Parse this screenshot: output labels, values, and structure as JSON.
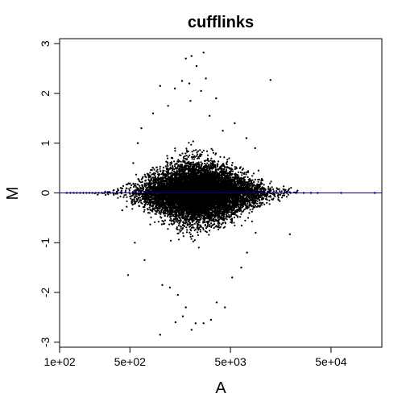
{
  "chart_data": {
    "type": "scatter",
    "title": "cufflinks",
    "xlabel": "A",
    "ylabel": "M",
    "x_scale": "log",
    "xlim": [
      100,
      160000
    ],
    "ylim": [
      -3.1,
      3.1
    ],
    "x_ticks": [
      100,
      500,
      5000,
      50000
    ],
    "x_tick_labels": [
      "1e+02",
      "5e+02",
      "5e+03",
      "5e+04"
    ],
    "y_ticks": [
      -3,
      -2,
      -1,
      0,
      1,
      2,
      3
    ],
    "y_tick_labels": [
      "-3",
      "-2",
      "-1",
      "0",
      "1",
      "2",
      "3"
    ],
    "reference_line": {
      "y": 0,
      "color": "#00008b"
    },
    "grid": false,
    "legend": "none",
    "point_color": "#000000",
    "bulk_cloud": {
      "center_x": 2500,
      "center_y": 0,
      "spread_log10_x": 0.28,
      "spread_y": 0.32,
      "n_points": 9000
    },
    "points": [
      {
        "x": 2700,
        "y": 2.82
      },
      {
        "x": 2050,
        "y": 2.75
      },
      {
        "x": 1800,
        "y": 2.7
      },
      {
        "x": 2300,
        "y": 2.55
      },
      {
        "x": 1650,
        "y": 2.25
      },
      {
        "x": 1950,
        "y": 2.2
      },
      {
        "x": 2850,
        "y": 2.3
      },
      {
        "x": 12500,
        "y": 2.27
      },
      {
        "x": 1000,
        "y": 2.15
      },
      {
        "x": 1400,
        "y": 2.1
      },
      {
        "x": 2550,
        "y": 2.05
      },
      {
        "x": 3600,
        "y": 1.9
      },
      {
        "x": 1200,
        "y": 1.75
      },
      {
        "x": 650,
        "y": 1.3
      },
      {
        "x": 600,
        "y": 1.0
      },
      {
        "x": 5500,
        "y": 1.4
      },
      {
        "x": 7200,
        "y": 1.1
      },
      {
        "x": 850,
        "y": 1.6
      },
      {
        "x": 3100,
        "y": 1.55
      },
      {
        "x": 2000,
        "y": 1.85
      },
      {
        "x": 4200,
        "y": 1.25
      },
      {
        "x": 540,
        "y": 0.6
      },
      {
        "x": 8800,
        "y": 0.9
      },
      {
        "x": 9500,
        "y": 0.45
      },
      {
        "x": 420,
        "y": -0.35
      },
      {
        "x": 19500,
        "y": -0.83
      },
      {
        "x": 560,
        "y": -1.0
      },
      {
        "x": 700,
        "y": -1.35
      },
      {
        "x": 480,
        "y": -1.65
      },
      {
        "x": 1050,
        "y": -1.85
      },
      {
        "x": 1500,
        "y": -2.05
      },
      {
        "x": 1800,
        "y": -2.3
      },
      {
        "x": 1680,
        "y": -2.48
      },
      {
        "x": 2250,
        "y": -2.62
      },
      {
        "x": 3200,
        "y": -2.55
      },
      {
        "x": 2700,
        "y": -2.62
      },
      {
        "x": 4400,
        "y": -2.3
      },
      {
        "x": 1420,
        "y": -2.6
      },
      {
        "x": 1000,
        "y": -2.85
      },
      {
        "x": 3650,
        "y": -2.2
      },
      {
        "x": 2050,
        "y": -2.75
      },
      {
        "x": 5200,
        "y": -1.7
      },
      {
        "x": 7300,
        "y": -1.2
      },
      {
        "x": 6400,
        "y": -1.5
      },
      {
        "x": 1250,
        "y": -1.9
      },
      {
        "x": 8900,
        "y": -0.8
      }
    ],
    "baseline_points": [
      {
        "x": 118,
        "y": 0
      },
      {
        "x": 128,
        "y": 0
      },
      {
        "x": 138,
        "y": 0
      },
      {
        "x": 148,
        "y": 0
      },
      {
        "x": 160,
        "y": 0
      },
      {
        "x": 172,
        "y": 0
      },
      {
        "x": 185,
        "y": 0
      },
      {
        "x": 198,
        "y": 0
      },
      {
        "x": 212,
        "y": 0
      },
      {
        "x": 228,
        "y": 0
      },
      {
        "x": 245,
        "y": 0
      },
      {
        "x": 262,
        "y": 0
      },
      {
        "x": 280,
        "y": 0
      },
      {
        "x": 300,
        "y": 0
      },
      {
        "x": 320,
        "y": 0
      },
      {
        "x": 340,
        "y": 0
      },
      {
        "x": 14500,
        "y": 0
      },
      {
        "x": 15800,
        "y": 0
      },
      {
        "x": 17200,
        "y": 0
      },
      {
        "x": 19800,
        "y": 0
      },
      {
        "x": 22500,
        "y": 0
      },
      {
        "x": 26800,
        "y": 0
      },
      {
        "x": 31500,
        "y": 0
      },
      {
        "x": 36800,
        "y": 0
      },
      {
        "x": 63000,
        "y": 0
      },
      {
        "x": 136000,
        "y": 0
      }
    ]
  }
}
